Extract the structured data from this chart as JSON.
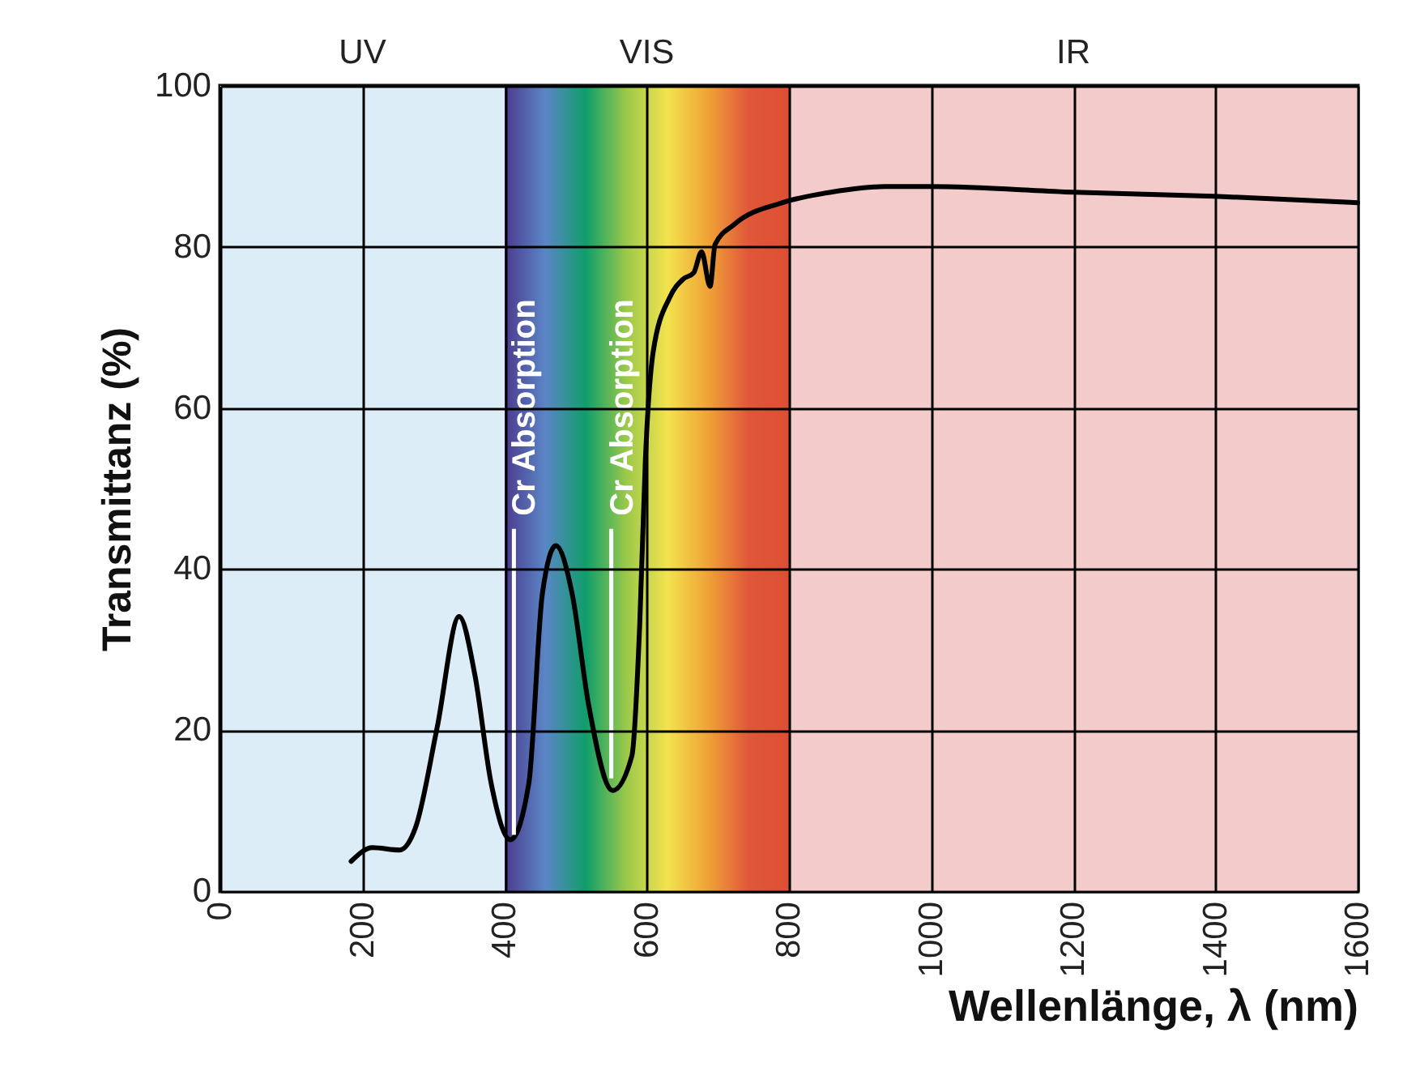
{
  "chart_data": {
    "type": "line",
    "xlabel": "Wellenlänge, λ (nm)",
    "ylabel": "Transmittanz (%)",
    "x": [
      184,
      214,
      252,
      275,
      305,
      336,
      358,
      381,
      408,
      434,
      453,
      472,
      495,
      518,
      552,
      579,
      590,
      598,
      609,
      632,
      651,
      666,
      677,
      689,
      696,
      723,
      791,
      859,
      935,
      1000,
      1201,
      1398,
      1600
    ],
    "series": [
      {
        "color": "#000000",
        "values": [
          3.7,
          5.4,
          5.1,
          8.0,
          20.3,
          34.1,
          26.9,
          13.4,
          6.4,
          13.4,
          36.9,
          42.9,
          36.9,
          23.2,
          12.5,
          16.8,
          33.1,
          53.6,
          67.0,
          73.7,
          76.0,
          76.8,
          79.4,
          75.1,
          80.3,
          82.8,
          85.5,
          86.8,
          87.5,
          87.5,
          86.8,
          86.3,
          85.5
        ]
      }
    ],
    "xlim": [
      0,
      1600
    ],
    "xticks": [
      0,
      200,
      400,
      600,
      800,
      1000,
      1200,
      1400,
      1600
    ],
    "ylim": [
      0,
      100
    ],
    "yticks": [
      0,
      20,
      40,
      60,
      80,
      100
    ],
    "grid": true,
    "bands": [
      {
        "axis": "x",
        "from": 0,
        "to": 400,
        "label": "UV",
        "color": "#dcedf8"
      },
      {
        "axis": "x",
        "from": 400,
        "to": 800,
        "label": "VIS",
        "color": "#f2e34e"
      },
      {
        "axis": "x",
        "from": 800,
        "to": 1600,
        "label": "IR",
        "color": "#f4cbcb"
      }
    ],
    "annotations": [
      {
        "text": "Cr Absorption",
        "x": 413,
        "y": 7
      },
      {
        "text": "Cr Absorption",
        "x": 550,
        "y": 14
      }
    ]
  }
}
